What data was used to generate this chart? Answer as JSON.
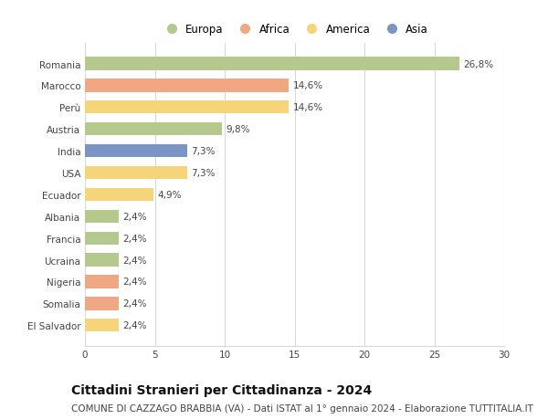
{
  "categories": [
    "Romania",
    "Marocco",
    "Perù",
    "Austria",
    "India",
    "USA",
    "Ecuador",
    "Albania",
    "Francia",
    "Ucraina",
    "Nigeria",
    "Somalia",
    "El Salvador"
  ],
  "values": [
    26.8,
    14.6,
    14.6,
    9.8,
    7.3,
    7.3,
    4.9,
    2.4,
    2.4,
    2.4,
    2.4,
    2.4,
    2.4
  ],
  "labels": [
    "26,8%",
    "14,6%",
    "14,6%",
    "9,8%",
    "7,3%",
    "7,3%",
    "4,9%",
    "2,4%",
    "2,4%",
    "2,4%",
    "2,4%",
    "2,4%",
    "2,4%"
  ],
  "colors": [
    "#b5c98e",
    "#f0a883",
    "#f5d47a",
    "#b5c98e",
    "#7a94c4",
    "#f5d47a",
    "#f5d47a",
    "#b5c98e",
    "#b5c98e",
    "#b5c98e",
    "#f0a883",
    "#f0a883",
    "#f5d47a"
  ],
  "legend_labels": [
    "Europa",
    "Africa",
    "America",
    "Asia"
  ],
  "legend_colors": [
    "#b5c98e",
    "#f0a883",
    "#f5d47a",
    "#7a94c4"
  ],
  "title": "Cittadini Stranieri per Cittadinanza - 2024",
  "subtitle": "COMUNE DI CAZZAGO BRABBIA (VA) - Dati ISTAT al 1° gennaio 2024 - Elaborazione TUTTITALIA.IT",
  "xlim": [
    0,
    30
  ],
  "xticks": [
    0,
    5,
    10,
    15,
    20,
    25,
    30
  ],
  "bg_color": "#ffffff",
  "grid_color": "#d8d8d8",
  "bar_height": 0.6,
  "title_fontsize": 10,
  "subtitle_fontsize": 7.5,
  "label_fontsize": 7.5,
  "tick_fontsize": 7.5,
  "legend_fontsize": 8.5
}
